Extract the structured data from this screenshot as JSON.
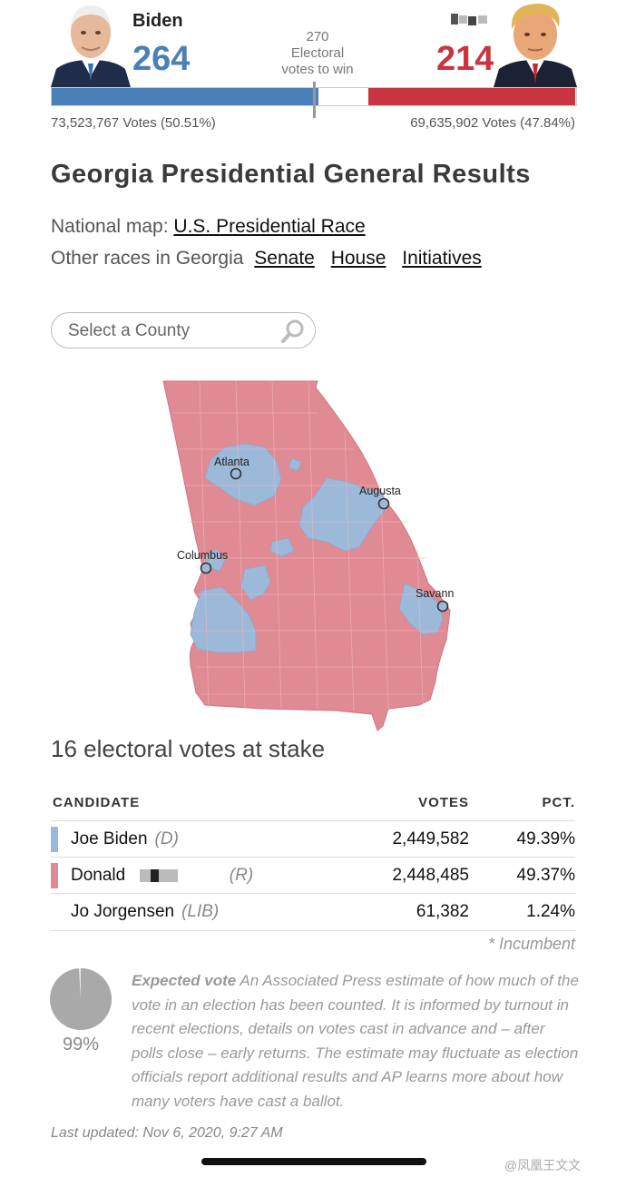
{
  "header": {
    "biden": {
      "name": "Biden",
      "electoral_votes": "264",
      "popular_votes": "73,523,767 Votes (50.51%)",
      "color": "#4a7fb7"
    },
    "trump": {
      "name": "",
      "electoral_votes": "214",
      "popular_votes": "69,635,902 Votes (47.84%)",
      "color": "#c8343f"
    },
    "to_win": {
      "number": "270",
      "line1": "Electoral",
      "line2": "votes to win"
    },
    "bar": {
      "biden_share": 0.51,
      "trump_share": 0.395
    }
  },
  "page_title": "Georgia Presidential General Results",
  "national_map": {
    "prefix": "National map:",
    "link": "U.S. Presidential Race"
  },
  "other_races": {
    "prefix": "Other races in Georgia",
    "links": [
      "Senate",
      "House",
      "Initiatives"
    ]
  },
  "search": {
    "placeholder": "Select a County",
    "icon": "search-icon"
  },
  "map": {
    "cities": [
      "Atlanta",
      "Augusta",
      "Columbus",
      "Savannah"
    ],
    "colors": {
      "dem": "#9cb9d9",
      "rep": "#e08a94"
    }
  },
  "electoral_votes_at_stake": "16 electoral votes at stake",
  "table": {
    "headers": {
      "candidate": "CANDIDATE",
      "votes": "VOTES",
      "pct": "PCT."
    },
    "rows": [
      {
        "name": "Joe Biden",
        "party": "(D)",
        "votes": "2,449,582",
        "pct": "49.39%",
        "color": "#9cb9d9"
      },
      {
        "name": "Donald",
        "party": "(R)",
        "votes": "2,448,485",
        "pct": "49.37%",
        "color": "#e08a94"
      },
      {
        "name": "Jo Jorgensen",
        "party": "(LIB)",
        "votes": "61,382",
        "pct": "1.24%",
        "color": ""
      }
    ],
    "incumbent_note": "* Incumbent"
  },
  "expected_vote": {
    "pct": "99%",
    "value": 0.99,
    "label": "Expected vote",
    "description": "An Associated Press estimate of how much of the vote in an election has been counted. It is informed by turnout in recent elections, details on votes cast in advance and – after polls close – early returns. The estimate may fluctuate as election officials report additional results and AP learns more about how many voters have cast a ballot."
  },
  "last_updated": "Last updated: Nov 6, 2020, 9:27 AM",
  "watermark": "@凤凰王文文"
}
